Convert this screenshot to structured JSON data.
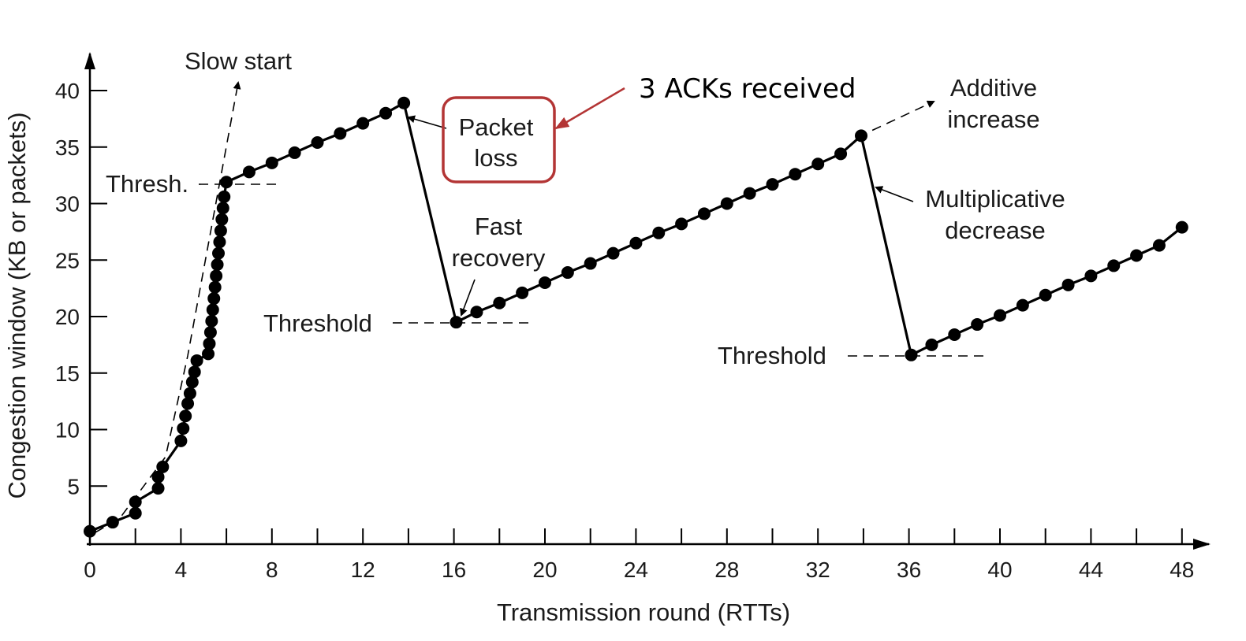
{
  "chart_data": {
    "type": "line",
    "xlabel": "Transmission round (RTTs)",
    "ylabel": "Congestion window (KB or packets)",
    "xlim": [
      0,
      48
    ],
    "ylim": [
      0,
      40
    ],
    "x_ticks": [
      0,
      4,
      8,
      12,
      16,
      20,
      24,
      28,
      32,
      36,
      40,
      44,
      48
    ],
    "y_ticks": [
      5,
      10,
      15,
      20,
      25,
      30,
      35,
      40
    ],
    "series": [
      {
        "name": "Congestion window",
        "points": [
          [
            0,
            1
          ],
          [
            1,
            1.8
          ],
          [
            2,
            2.6
          ],
          [
            2,
            3.6
          ],
          [
            3,
            4.8
          ],
          [
            3,
            5.8
          ],
          [
            3.2,
            6.7
          ],
          [
            4,
            9
          ],
          [
            4.1,
            10.1
          ],
          [
            4.2,
            11.2
          ],
          [
            4.3,
            12.3
          ],
          [
            4.4,
            13.2
          ],
          [
            4.5,
            14.2
          ],
          [
            4.6,
            15.1
          ],
          [
            4.7,
            16.1
          ],
          [
            5.2,
            16.7
          ],
          [
            5.25,
            17.6
          ],
          [
            5.3,
            18.6
          ],
          [
            5.35,
            19.6
          ],
          [
            5.4,
            20.6
          ],
          [
            5.45,
            21.6
          ],
          [
            5.5,
            22.6
          ],
          [
            5.55,
            23.6
          ],
          [
            5.6,
            24.6
          ],
          [
            5.65,
            25.6
          ],
          [
            5.7,
            26.6
          ],
          [
            5.75,
            27.6
          ],
          [
            5.8,
            28.6
          ],
          [
            5.85,
            29.6
          ],
          [
            5.9,
            30.6
          ],
          [
            6,
            31.9
          ],
          [
            7,
            32.8
          ],
          [
            8,
            33.6
          ],
          [
            9,
            34.5
          ],
          [
            10,
            35.4
          ],
          [
            11,
            36.2
          ],
          [
            12,
            37.1
          ],
          [
            13,
            38
          ],
          [
            13.8,
            38.9
          ],
          [
            16.1,
            19.5
          ],
          [
            17,
            20.4
          ],
          [
            18,
            21.2
          ],
          [
            19,
            22.1
          ],
          [
            20,
            23
          ],
          [
            21,
            23.9
          ],
          [
            22,
            24.7
          ],
          [
            23,
            25.6
          ],
          [
            24,
            26.5
          ],
          [
            25,
            27.4
          ],
          [
            26,
            28.2
          ],
          [
            27,
            29.1
          ],
          [
            28,
            30
          ],
          [
            29,
            30.9
          ],
          [
            30,
            31.7
          ],
          [
            31,
            32.6
          ],
          [
            32,
            33.5
          ],
          [
            33,
            34.4
          ],
          [
            33.9,
            36
          ],
          [
            36.1,
            16.6
          ],
          [
            37,
            17.5
          ],
          [
            38,
            18.4
          ],
          [
            39,
            19.3
          ],
          [
            40,
            20.1
          ],
          [
            41,
            21
          ],
          [
            42,
            21.9
          ],
          [
            43,
            22.8
          ],
          [
            44,
            23.6
          ],
          [
            45,
            24.5
          ],
          [
            46,
            25.4
          ],
          [
            47,
            26.3
          ],
          [
            48,
            27.9
          ]
        ]
      }
    ],
    "annotations": {
      "slow_start": "Slow start",
      "thresh": "Thresh.",
      "packet_loss_line1": "Packet",
      "packet_loss_line2": "loss",
      "acks_received": "3 ACKs received",
      "fast_recovery_line1": "Fast",
      "fast_recovery_line2": "recovery",
      "threshold_1": "Threshold",
      "additive_line1": "Additive",
      "additive_line2": "increase",
      "multiplicative_line1": "Multiplicative",
      "multiplicative_line2": "decrease",
      "threshold_2": "Threshold"
    }
  },
  "colors": {
    "ink": "#000000",
    "callout": "#b33535",
    "background": "#ffffff"
  }
}
